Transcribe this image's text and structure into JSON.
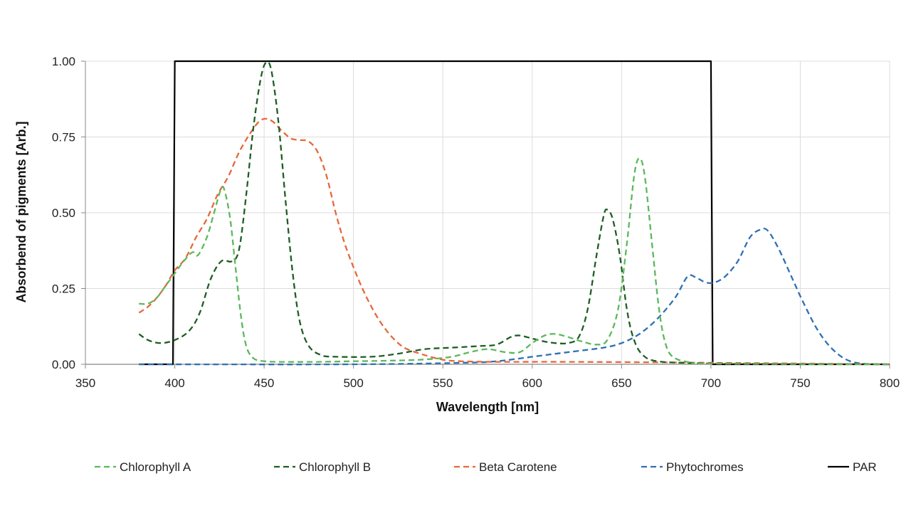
{
  "chart_data": {
    "type": "line",
    "title": "",
    "xlabel": "Wavelength [nm]",
    "ylabel": "Absorbend of pigments [Arb.]",
    "xlim": [
      350,
      800
    ],
    "ylim": [
      0,
      1
    ],
    "x_ticks": [
      "350",
      "400",
      "450",
      "500",
      "550",
      "600",
      "650",
      "700",
      "750",
      "800"
    ],
    "y_ticks": [
      "0.00",
      "0.25",
      "0.50",
      "0.75",
      "1.00"
    ],
    "grid": true,
    "legend_position": "bottom",
    "series": [
      {
        "name": "Chlorophyll A",
        "color": "#5cb85c",
        "dash": "dashed",
        "points": [
          [
            380,
            0.2
          ],
          [
            385,
            0.2
          ],
          [
            390,
            0.22
          ],
          [
            395,
            0.26
          ],
          [
            400,
            0.3
          ],
          [
            405,
            0.34
          ],
          [
            410,
            0.37
          ],
          [
            413,
            0.36
          ],
          [
            418,
            0.42
          ],
          [
            422,
            0.5
          ],
          [
            426,
            0.58
          ],
          [
            428,
            0.57
          ],
          [
            431,
            0.48
          ],
          [
            434,
            0.32
          ],
          [
            437,
            0.16
          ],
          [
            440,
            0.06
          ],
          [
            444,
            0.02
          ],
          [
            450,
            0.01
          ],
          [
            460,
            0.008
          ],
          [
            480,
            0.008
          ],
          [
            500,
            0.01
          ],
          [
            520,
            0.012
          ],
          [
            540,
            0.016
          ],
          [
            555,
            0.025
          ],
          [
            565,
            0.04
          ],
          [
            575,
            0.05
          ],
          [
            585,
            0.04
          ],
          [
            593,
            0.04
          ],
          [
            600,
            0.07
          ],
          [
            607,
            0.095
          ],
          [
            613,
            0.1
          ],
          [
            620,
            0.09
          ],
          [
            628,
            0.075
          ],
          [
            636,
            0.065
          ],
          [
            642,
            0.08
          ],
          [
            648,
            0.18
          ],
          [
            653,
            0.4
          ],
          [
            657,
            0.62
          ],
          [
            660,
            0.68
          ],
          [
            663,
            0.62
          ],
          [
            667,
            0.4
          ],
          [
            671,
            0.18
          ],
          [
            675,
            0.06
          ],
          [
            680,
            0.02
          ],
          [
            690,
            0.005
          ],
          [
            700,
            0.002
          ],
          [
            800,
            0.0
          ]
        ]
      },
      {
        "name": "Chlorophyll B",
        "color": "#1e5e25",
        "dash": "dashed",
        "points": [
          [
            380,
            0.1
          ],
          [
            385,
            0.08
          ],
          [
            392,
            0.07
          ],
          [
            400,
            0.08
          ],
          [
            408,
            0.11
          ],
          [
            414,
            0.17
          ],
          [
            420,
            0.28
          ],
          [
            426,
            0.34
          ],
          [
            432,
            0.34
          ],
          [
            436,
            0.38
          ],
          [
            440,
            0.56
          ],
          [
            444,
            0.78
          ],
          [
            448,
            0.94
          ],
          [
            451,
            0.995
          ],
          [
            454,
            0.97
          ],
          [
            458,
            0.8
          ],
          [
            462,
            0.54
          ],
          [
            466,
            0.3
          ],
          [
            470,
            0.14
          ],
          [
            475,
            0.06
          ],
          [
            482,
            0.03
          ],
          [
            490,
            0.025
          ],
          [
            510,
            0.025
          ],
          [
            525,
            0.035
          ],
          [
            540,
            0.05
          ],
          [
            555,
            0.055
          ],
          [
            570,
            0.06
          ],
          [
            580,
            0.065
          ],
          [
            588,
            0.09
          ],
          [
            593,
            0.095
          ],
          [
            600,
            0.085
          ],
          [
            607,
            0.075
          ],
          [
            613,
            0.07
          ],
          [
            620,
            0.07
          ],
          [
            626,
            0.09
          ],
          [
            631,
            0.18
          ],
          [
            636,
            0.36
          ],
          [
            640,
            0.49
          ],
          [
            642,
            0.51
          ],
          [
            645,
            0.48
          ],
          [
            649,
            0.36
          ],
          [
            653,
            0.18
          ],
          [
            657,
            0.08
          ],
          [
            662,
            0.03
          ],
          [
            670,
            0.01
          ],
          [
            690,
            0.004
          ],
          [
            720,
            0.002
          ],
          [
            800,
            0.0
          ]
        ]
      },
      {
        "name": "Beta Carotene",
        "color": "#e8673a",
        "dash": "dashed",
        "points": [
          [
            380,
            0.17
          ],
          [
            385,
            0.19
          ],
          [
            390,
            0.22
          ],
          [
            395,
            0.26
          ],
          [
            400,
            0.31
          ],
          [
            406,
            0.35
          ],
          [
            412,
            0.42
          ],
          [
            418,
            0.48
          ],
          [
            424,
            0.56
          ],
          [
            430,
            0.62
          ],
          [
            436,
            0.7
          ],
          [
            442,
            0.76
          ],
          [
            447,
            0.8
          ],
          [
            451,
            0.81
          ],
          [
            455,
            0.8
          ],
          [
            460,
            0.77
          ],
          [
            465,
            0.745
          ],
          [
            470,
            0.74
          ],
          [
            475,
            0.735
          ],
          [
            480,
            0.7
          ],
          [
            485,
            0.62
          ],
          [
            490,
            0.5
          ],
          [
            495,
            0.4
          ],
          [
            500,
            0.32
          ],
          [
            505,
            0.25
          ],
          [
            510,
            0.19
          ],
          [
            515,
            0.14
          ],
          [
            520,
            0.1
          ],
          [
            525,
            0.07
          ],
          [
            530,
            0.05
          ],
          [
            540,
            0.03
          ],
          [
            550,
            0.015
          ],
          [
            560,
            0.01
          ],
          [
            580,
            0.008
          ],
          [
            620,
            0.008
          ],
          [
            680,
            0.006
          ],
          [
            700,
            0.005
          ],
          [
            800,
            0.0
          ]
        ]
      },
      {
        "name": "Phytochromes",
        "color": "#2f6fb3",
        "dash": "dashed",
        "points": [
          [
            380,
            0.0
          ],
          [
            500,
            0.0
          ],
          [
            560,
            0.005
          ],
          [
            580,
            0.01
          ],
          [
            600,
            0.025
          ],
          [
            620,
            0.04
          ],
          [
            640,
            0.055
          ],
          [
            650,
            0.07
          ],
          [
            660,
            0.1
          ],
          [
            670,
            0.15
          ],
          [
            680,
            0.22
          ],
          [
            687,
            0.29
          ],
          [
            692,
            0.285
          ],
          [
            697,
            0.27
          ],
          [
            702,
            0.27
          ],
          [
            708,
            0.29
          ],
          [
            715,
            0.34
          ],
          [
            722,
            0.42
          ],
          [
            728,
            0.445
          ],
          [
            732,
            0.44
          ],
          [
            738,
            0.38
          ],
          [
            745,
            0.29
          ],
          [
            752,
            0.2
          ],
          [
            760,
            0.11
          ],
          [
            768,
            0.05
          ],
          [
            776,
            0.015
          ],
          [
            785,
            0.002
          ],
          [
            800,
            0.0
          ]
        ]
      },
      {
        "name": "PAR",
        "color": "#000000",
        "dash": "solid",
        "points": [
          [
            380,
            0.0
          ],
          [
            399,
            0.0
          ],
          [
            400,
            1.0
          ],
          [
            700,
            1.0
          ],
          [
            701,
            0.0
          ],
          [
            800,
            0.0
          ]
        ]
      }
    ]
  }
}
